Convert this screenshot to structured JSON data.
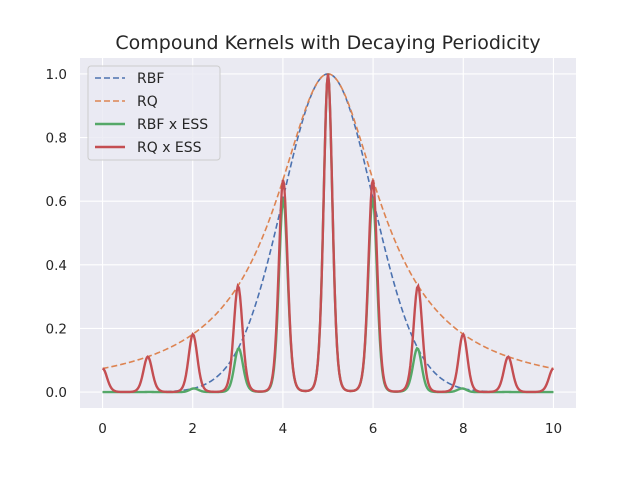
{
  "chart_data": {
    "type": "line",
    "title": "Compound Kernels with Decaying Periodicity",
    "xlabel": "",
    "ylabel": "",
    "xlim": [
      -0.5,
      10.5
    ],
    "ylim": [
      -0.05,
      1.05
    ],
    "xticks": [
      0,
      2,
      4,
      6,
      8,
      10
    ],
    "yticks": [
      0.0,
      0.2,
      0.4,
      0.6,
      0.8,
      1.0
    ],
    "xtick_labels": [
      "0",
      "2",
      "4",
      "6",
      "8",
      "10"
    ],
    "ytick_labels": [
      "0.0",
      "0.2",
      "0.4",
      "0.6",
      "0.8",
      "1.0"
    ],
    "grid": true,
    "legend_position": "top-left",
    "background": "#eaeaf2",
    "series": [
      {
        "name": "RBF",
        "color": "#4c72b0",
        "linestyle": "dashed",
        "x": [
          0,
          0.5,
          1,
          1.5,
          2,
          2.5,
          3,
          3.5,
          4,
          4.5,
          5,
          5.5,
          6,
          6.5,
          7,
          7.5,
          8,
          8.5,
          9,
          9.5,
          10
        ],
        "y": [
          0.0,
          0.0,
          0.0,
          0.004,
          0.011,
          0.044,
          0.135,
          0.325,
          0.607,
          0.882,
          1.0,
          0.882,
          0.607,
          0.325,
          0.135,
          0.044,
          0.011,
          0.004,
          0.0,
          0.0,
          0.0
        ]
      },
      {
        "name": "RQ",
        "color": "#dd8452",
        "linestyle": "dashed",
        "x": [
          0,
          0.5,
          1,
          1.5,
          2,
          2.5,
          3,
          3.5,
          4,
          4.5,
          5,
          5.5,
          6,
          6.5,
          7,
          7.5,
          8,
          8.5,
          9,
          9.5,
          10
        ],
        "y": [
          0.074,
          0.09,
          0.111,
          0.14,
          0.18,
          0.242,
          0.333,
          0.471,
          0.667,
          0.889,
          1.0,
          0.889,
          0.667,
          0.471,
          0.333,
          0.242,
          0.18,
          0.14,
          0.111,
          0.09,
          0.074
        ]
      },
      {
        "name": "RBF x ESS",
        "color": "#55a868",
        "linestyle": "solid",
        "x": [
          0,
          0.5,
          1,
          1.5,
          2,
          2.5,
          3,
          3.5,
          4,
          4.5,
          5,
          5.5,
          6,
          6.5,
          7,
          7.5,
          8,
          8.5,
          9,
          9.5,
          10
        ],
        "y": [
          0.0,
          0.0,
          0.0,
          0.0,
          0.011,
          0.006,
          0.135,
          0.044,
          0.607,
          0.119,
          1.0,
          0.119,
          0.607,
          0.044,
          0.135,
          0.006,
          0.011,
          0.0,
          0.0,
          0.0,
          0.0
        ]
      },
      {
        "name": "RQ x ESS",
        "color": "#c44e52",
        "linestyle": "solid",
        "x": [
          0,
          0.5,
          1,
          1.5,
          2,
          2.5,
          3,
          3.5,
          4,
          4.5,
          5,
          5.5,
          6,
          6.5,
          7,
          7.5,
          8,
          8.5,
          9,
          9.5,
          10
        ],
        "y": [
          0.074,
          0.012,
          0.111,
          0.019,
          0.18,
          0.033,
          0.333,
          0.064,
          0.667,
          0.12,
          1.0,
          0.12,
          0.667,
          0.064,
          0.333,
          0.033,
          0.18,
          0.019,
          0.111,
          0.012,
          0.074
        ]
      }
    ]
  }
}
